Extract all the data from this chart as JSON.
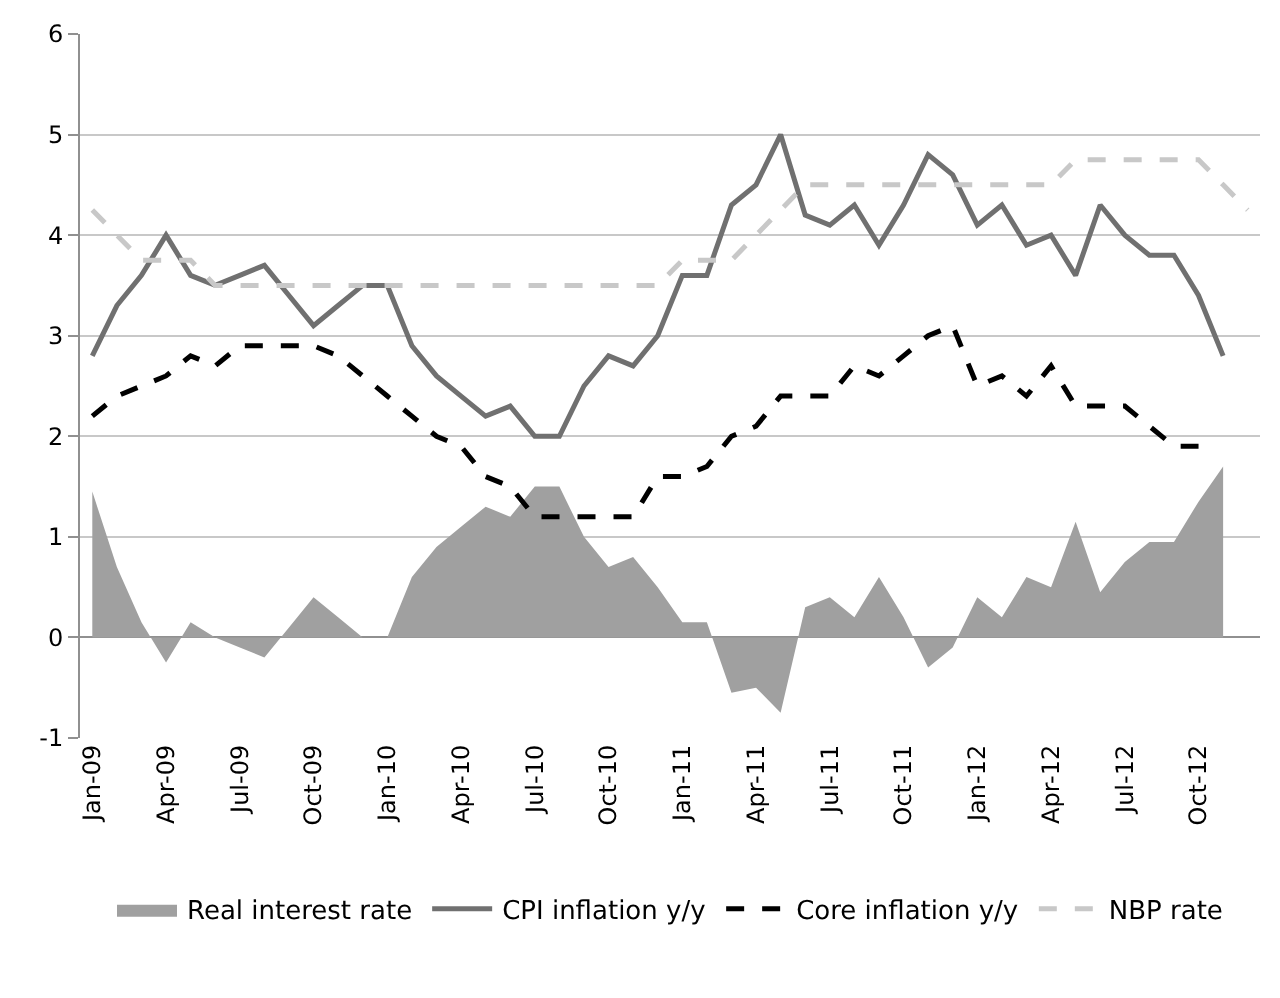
{
  "chart_data": {
    "type": "line",
    "categories": [
      "Jan-09",
      null,
      null,
      "Apr-09",
      null,
      null,
      "Jul-09",
      null,
      null,
      "Oct-09",
      null,
      null,
      "Jan-10",
      null,
      null,
      "Apr-10",
      null,
      null,
      "Jul-10",
      null,
      null,
      "Oct-10",
      null,
      null,
      "Jan-11",
      null,
      null,
      "Apr-11",
      null,
      null,
      "Jul-11",
      null,
      null,
      "Oct-11",
      null,
      null,
      "Jan-12",
      null,
      null,
      "Apr-12",
      null,
      null,
      "Jul-12",
      null,
      null,
      "Oct-12",
      null,
      null
    ],
    "series": [
      {
        "name": "Real interest rate",
        "type": "area",
        "color": "#a0a0a0",
        "values": [
          1.45,
          0.7,
          0.15,
          -0.25,
          0.15,
          0.0,
          -0.1,
          -0.2,
          0.1,
          0.4,
          0.2,
          0.0,
          0.0,
          0.6,
          0.9,
          1.1,
          1.3,
          1.2,
          1.5,
          1.5,
          1.0,
          0.7,
          0.8,
          0.5,
          0.15,
          0.15,
          -0.55,
          -0.5,
          -0.75,
          0.3,
          0.4,
          0.2,
          0.6,
          0.2,
          -0.3,
          -0.1,
          0.4,
          0.2,
          0.6,
          0.5,
          1.15,
          0.45,
          0.75,
          0.95,
          0.95,
          1.35,
          1.7,
          null
        ]
      },
      {
        "name": "CPI inflation y/y",
        "color": "#707070",
        "line_style": "solid",
        "values": [
          2.8,
          3.3,
          3.6,
          4.0,
          3.6,
          3.5,
          3.6,
          3.7,
          3.4,
          3.1,
          3.3,
          3.5,
          3.5,
          2.9,
          2.6,
          2.4,
          2.2,
          2.3,
          2.0,
          2.0,
          2.5,
          2.8,
          2.7,
          3.0,
          3.6,
          3.6,
          4.3,
          4.5,
          5.0,
          4.2,
          4.1,
          4.3,
          3.9,
          4.3,
          4.8,
          4.6,
          4.1,
          4.3,
          3.9,
          4.0,
          3.6,
          4.3,
          4.0,
          3.8,
          3.8,
          3.4,
          2.8,
          null
        ]
      },
      {
        "name": "Core inflation y/y",
        "color": "#000000",
        "line_style": "dashed",
        "values": [
          2.2,
          2.4,
          2.5,
          2.6,
          2.8,
          2.7,
          2.9,
          2.9,
          2.9,
          2.9,
          2.8,
          2.6,
          2.4,
          2.2,
          2.0,
          1.9,
          1.6,
          1.5,
          1.2,
          1.2,
          1.2,
          1.2,
          1.2,
          1.6,
          1.6,
          1.7,
          2.0,
          2.1,
          2.4,
          2.4,
          2.4,
          2.7,
          2.6,
          2.8,
          3.0,
          3.1,
          2.5,
          2.6,
          2.4,
          2.7,
          2.3,
          2.3,
          2.3,
          2.1,
          1.9,
          1.9,
          null,
          null
        ]
      },
      {
        "name": "NBP rate",
        "color": "#c8c8c8",
        "line_style": "dashed",
        "values": [
          4.25,
          4.0,
          3.75,
          3.75,
          3.75,
          3.5,
          3.5,
          3.5,
          3.5,
          3.5,
          3.5,
          3.5,
          3.5,
          3.5,
          3.5,
          3.5,
          3.5,
          3.5,
          3.5,
          3.5,
          3.5,
          3.5,
          3.5,
          3.5,
          3.75,
          3.75,
          3.75,
          4.0,
          4.25,
          4.5,
          4.5,
          4.5,
          4.5,
          4.5,
          4.5,
          4.5,
          4.5,
          4.5,
          4.5,
          4.5,
          4.75,
          4.75,
          4.75,
          4.75,
          4.75,
          4.75,
          4.5,
          4.25
        ]
      }
    ],
    "ylim": [
      -1,
      6
    ],
    "yticks": [
      -1,
      0,
      1,
      2,
      3,
      4,
      5,
      6
    ],
    "grid": "y",
    "legend": "bottom"
  }
}
